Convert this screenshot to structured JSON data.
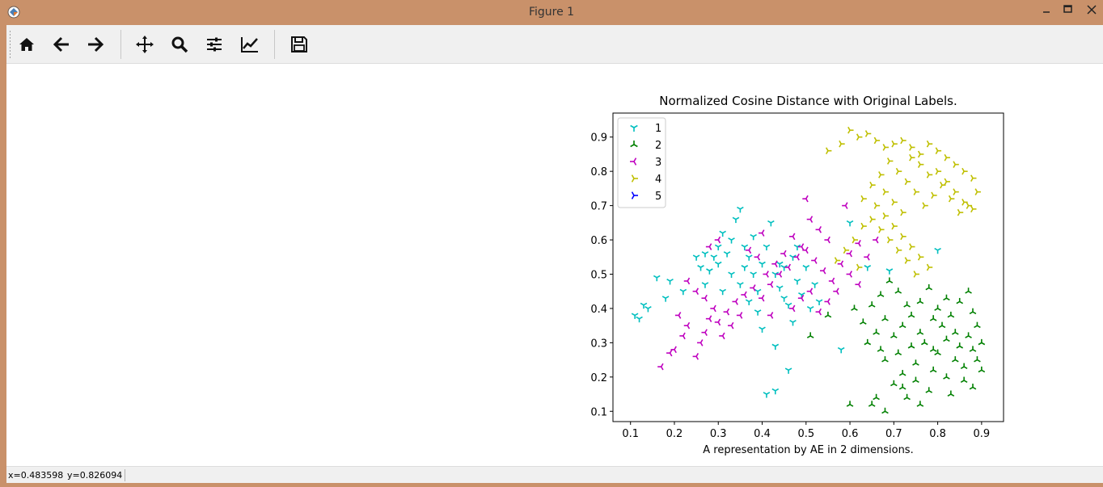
{
  "window": {
    "title": "Figure 1"
  },
  "toolbar": {
    "buttons": [
      {
        "name": "home-icon",
        "tooltip": "Home"
      },
      {
        "name": "back-arrow-icon",
        "tooltip": "Back"
      },
      {
        "name": "forward-arrow-icon",
        "tooltip": "Forward"
      },
      {
        "name": "pan-icon",
        "tooltip": "Pan"
      },
      {
        "name": "zoom-icon",
        "tooltip": "Zoom"
      },
      {
        "name": "subplots-icon",
        "tooltip": "Subplots"
      },
      {
        "name": "customize-icon",
        "tooltip": "Customize"
      },
      {
        "name": "save-icon",
        "tooltip": "Save"
      }
    ]
  },
  "status": {
    "x": "x=0.483598",
    "y": "y=0.826094"
  },
  "chart_data": {
    "type": "scatter",
    "title": "Normalized Cosine Distance with Original Labels.",
    "xlabel": "A representation by AE in 2 dimensions.",
    "ylabel": "",
    "xlim": [
      0.06,
      0.95
    ],
    "ylim": [
      0.07,
      0.97
    ],
    "xticks": [
      0.1,
      0.2,
      0.3,
      0.4,
      0.5,
      0.6,
      0.7,
      0.8,
      0.9
    ],
    "yticks": [
      0.1,
      0.2,
      0.3,
      0.4,
      0.5,
      0.6,
      0.7,
      0.8,
      0.9
    ],
    "xtick_labels": [
      "0.1",
      "0.2",
      "0.3",
      "0.4",
      "0.5",
      "0.6",
      "0.7",
      "0.8",
      "0.9"
    ],
    "ytick_labels": [
      "0.1",
      "0.2",
      "0.3",
      "0.4",
      "0.5",
      "0.6",
      "0.7",
      "0.8",
      "0.9"
    ],
    "legend_position": "upper-left",
    "series": [
      {
        "name": "1",
        "color": "#00bfbf",
        "marker": "tri_down",
        "points": [
          [
            0.11,
            0.38
          ],
          [
            0.12,
            0.37
          ],
          [
            0.13,
            0.41
          ],
          [
            0.14,
            0.4
          ],
          [
            0.16,
            0.49
          ],
          [
            0.18,
            0.43
          ],
          [
            0.19,
            0.48
          ],
          [
            0.22,
            0.45
          ],
          [
            0.25,
            0.55
          ],
          [
            0.26,
            0.52
          ],
          [
            0.27,
            0.47
          ],
          [
            0.28,
            0.51
          ],
          [
            0.29,
            0.55
          ],
          [
            0.3,
            0.58
          ],
          [
            0.31,
            0.62
          ],
          [
            0.32,
            0.56
          ],
          [
            0.33,
            0.6
          ],
          [
            0.34,
            0.66
          ],
          [
            0.35,
            0.69
          ],
          [
            0.36,
            0.52
          ],
          [
            0.37,
            0.55
          ],
          [
            0.38,
            0.5
          ],
          [
            0.39,
            0.45
          ],
          [
            0.4,
            0.53
          ],
          [
            0.41,
            0.58
          ],
          [
            0.42,
            0.65
          ],
          [
            0.43,
            0.5
          ],
          [
            0.44,
            0.46
          ],
          [
            0.45,
            0.52
          ],
          [
            0.46,
            0.41
          ],
          [
            0.47,
            0.55
          ],
          [
            0.48,
            0.48
          ],
          [
            0.49,
            0.44
          ],
          [
            0.5,
            0.52
          ],
          [
            0.51,
            0.4
          ],
          [
            0.52,
            0.47
          ],
          [
            0.53,
            0.42
          ],
          [
            0.35,
            0.47
          ],
          [
            0.33,
            0.5
          ],
          [
            0.31,
            0.45
          ],
          [
            0.41,
            0.15
          ],
          [
            0.43,
            0.16
          ],
          [
            0.46,
            0.22
          ],
          [
            0.43,
            0.29
          ],
          [
            0.39,
            0.39
          ],
          [
            0.37,
            0.42
          ],
          [
            0.58,
            0.28
          ],
          [
            0.6,
            0.65
          ],
          [
            0.64,
            0.52
          ],
          [
            0.69,
            0.51
          ],
          [
            0.8,
            0.57
          ],
          [
            0.47,
            0.36
          ],
          [
            0.4,
            0.34
          ],
          [
            0.45,
            0.43
          ],
          [
            0.44,
            0.53
          ],
          [
            0.48,
            0.58
          ],
          [
            0.38,
            0.61
          ],
          [
            0.36,
            0.58
          ],
          [
            0.3,
            0.53
          ],
          [
            0.27,
            0.56
          ]
        ]
      },
      {
        "name": "2",
        "color": "#008000",
        "marker": "tri_up",
        "points": [
          [
            0.6,
            0.12
          ],
          [
            0.65,
            0.12
          ],
          [
            0.66,
            0.14
          ],
          [
            0.68,
            0.1
          ],
          [
            0.73,
            0.14
          ],
          [
            0.76,
            0.12
          ],
          [
            0.78,
            0.16
          ],
          [
            0.7,
            0.18
          ],
          [
            0.72,
            0.21
          ],
          [
            0.75,
            0.24
          ],
          [
            0.79,
            0.22
          ],
          [
            0.82,
            0.2
          ],
          [
            0.84,
            0.25
          ],
          [
            0.86,
            0.23
          ],
          [
            0.88,
            0.28
          ],
          [
            0.9,
            0.3
          ],
          [
            0.89,
            0.35
          ],
          [
            0.88,
            0.39
          ],
          [
            0.87,
            0.45
          ],
          [
            0.85,
            0.42
          ],
          [
            0.83,
            0.38
          ],
          [
            0.81,
            0.35
          ],
          [
            0.8,
            0.4
          ],
          [
            0.78,
            0.46
          ],
          [
            0.76,
            0.42
          ],
          [
            0.74,
            0.38
          ],
          [
            0.72,
            0.35
          ],
          [
            0.7,
            0.32
          ],
          [
            0.68,
            0.37
          ],
          [
            0.66,
            0.33
          ],
          [
            0.64,
            0.3
          ],
          [
            0.63,
            0.36
          ],
          [
            0.61,
            0.4
          ],
          [
            0.65,
            0.41
          ],
          [
            0.67,
            0.44
          ],
          [
            0.69,
            0.48
          ],
          [
            0.71,
            0.45
          ],
          [
            0.73,
            0.41
          ],
          [
            0.77,
            0.3
          ],
          [
            0.79,
            0.28
          ],
          [
            0.82,
            0.31
          ],
          [
            0.84,
            0.33
          ],
          [
            0.86,
            0.19
          ],
          [
            0.88,
            0.17
          ],
          [
            0.83,
            0.15
          ],
          [
            0.8,
            0.27
          ],
          [
            0.76,
            0.33
          ],
          [
            0.74,
            0.29
          ],
          [
            0.71,
            0.27
          ],
          [
            0.68,
            0.25
          ],
          [
            0.67,
            0.28
          ],
          [
            0.85,
            0.29
          ],
          [
            0.87,
            0.32
          ],
          [
            0.89,
            0.25
          ],
          [
            0.9,
            0.22
          ],
          [
            0.82,
            0.43
          ],
          [
            0.79,
            0.37
          ],
          [
            0.75,
            0.19
          ],
          [
            0.72,
            0.17
          ],
          [
            0.51,
            0.32
          ],
          [
            0.55,
            0.38
          ]
        ]
      },
      {
        "name": "3",
        "color": "#bf00bf",
        "marker": "tri_left",
        "points": [
          [
            0.17,
            0.23
          ],
          [
            0.19,
            0.27
          ],
          [
            0.2,
            0.28
          ],
          [
            0.22,
            0.32
          ],
          [
            0.23,
            0.35
          ],
          [
            0.25,
            0.26
          ],
          [
            0.26,
            0.3
          ],
          [
            0.27,
            0.33
          ],
          [
            0.28,
            0.37
          ],
          [
            0.3,
            0.36
          ],
          [
            0.32,
            0.39
          ],
          [
            0.34,
            0.42
          ],
          [
            0.36,
            0.44
          ],
          [
            0.38,
            0.46
          ],
          [
            0.4,
            0.43
          ],
          [
            0.42,
            0.47
          ],
          [
            0.44,
            0.5
          ],
          [
            0.46,
            0.52
          ],
          [
            0.48,
            0.55
          ],
          [
            0.5,
            0.57
          ],
          [
            0.52,
            0.54
          ],
          [
            0.54,
            0.51
          ],
          [
            0.56,
            0.48
          ],
          [
            0.58,
            0.53
          ],
          [
            0.6,
            0.5
          ],
          [
            0.62,
            0.47
          ],
          [
            0.64,
            0.55
          ],
          [
            0.55,
            0.6
          ],
          [
            0.53,
            0.63
          ],
          [
            0.51,
            0.66
          ],
          [
            0.49,
            0.58
          ],
          [
            0.47,
            0.61
          ],
          [
            0.45,
            0.56
          ],
          [
            0.43,
            0.53
          ],
          [
            0.41,
            0.5
          ],
          [
            0.39,
            0.55
          ],
          [
            0.37,
            0.57
          ],
          [
            0.35,
            0.38
          ],
          [
            0.33,
            0.35
          ],
          [
            0.31,
            0.32
          ],
          [
            0.29,
            0.4
          ],
          [
            0.27,
            0.43
          ],
          [
            0.25,
            0.45
          ],
          [
            0.23,
            0.48
          ],
          [
            0.21,
            0.38
          ],
          [
            0.5,
            0.72
          ],
          [
            0.59,
            0.7
          ],
          [
            0.57,
            0.45
          ],
          [
            0.55,
            0.42
          ],
          [
            0.53,
            0.39
          ],
          [
            0.51,
            0.45
          ],
          [
            0.49,
            0.43
          ],
          [
            0.47,
            0.4
          ],
          [
            0.6,
            0.56
          ],
          [
            0.62,
            0.59
          ],
          [
            0.66,
            0.6
          ],
          [
            0.28,
            0.58
          ],
          [
            0.3,
            0.6
          ],
          [
            0.4,
            0.62
          ],
          [
            0.42,
            0.38
          ]
        ]
      },
      {
        "name": "4",
        "color": "#bfbf00",
        "marker": "tri_right",
        "points": [
          [
            0.55,
            0.86
          ],
          [
            0.58,
            0.88
          ],
          [
            0.6,
            0.92
          ],
          [
            0.62,
            0.9
          ],
          [
            0.64,
            0.91
          ],
          [
            0.66,
            0.89
          ],
          [
            0.68,
            0.87
          ],
          [
            0.7,
            0.88
          ],
          [
            0.72,
            0.89
          ],
          [
            0.74,
            0.87
          ],
          [
            0.76,
            0.85
          ],
          [
            0.78,
            0.88
          ],
          [
            0.8,
            0.86
          ],
          [
            0.82,
            0.84
          ],
          [
            0.84,
            0.82
          ],
          [
            0.86,
            0.8
          ],
          [
            0.88,
            0.78
          ],
          [
            0.89,
            0.74
          ],
          [
            0.87,
            0.7
          ],
          [
            0.85,
            0.68
          ],
          [
            0.83,
            0.72
          ],
          [
            0.81,
            0.76
          ],
          [
            0.79,
            0.73
          ],
          [
            0.77,
            0.7
          ],
          [
            0.75,
            0.74
          ],
          [
            0.73,
            0.77
          ],
          [
            0.71,
            0.8
          ],
          [
            0.69,
            0.83
          ],
          [
            0.67,
            0.79
          ],
          [
            0.65,
            0.76
          ],
          [
            0.63,
            0.72
          ],
          [
            0.66,
            0.7
          ],
          [
            0.68,
            0.67
          ],
          [
            0.7,
            0.64
          ],
          [
            0.72,
            0.61
          ],
          [
            0.74,
            0.58
          ],
          [
            0.76,
            0.55
          ],
          [
            0.78,
            0.52
          ],
          [
            0.75,
            0.5
          ],
          [
            0.73,
            0.54
          ],
          [
            0.71,
            0.57
          ],
          [
            0.69,
            0.6
          ],
          [
            0.67,
            0.63
          ],
          [
            0.65,
            0.66
          ],
          [
            0.63,
            0.64
          ],
          [
            0.61,
            0.6
          ],
          [
            0.59,
            0.57
          ],
          [
            0.57,
            0.54
          ],
          [
            0.62,
            0.52
          ],
          [
            0.8,
            0.8
          ],
          [
            0.82,
            0.77
          ],
          [
            0.84,
            0.74
          ],
          [
            0.86,
            0.71
          ],
          [
            0.88,
            0.69
          ],
          [
            0.78,
            0.79
          ],
          [
            0.76,
            0.82
          ],
          [
            0.74,
            0.84
          ],
          [
            0.72,
            0.68
          ],
          [
            0.7,
            0.71
          ],
          [
            0.68,
            0.74
          ]
        ]
      },
      {
        "name": "5",
        "color": "#0000ff",
        "marker": "tri_right",
        "points": []
      }
    ]
  }
}
